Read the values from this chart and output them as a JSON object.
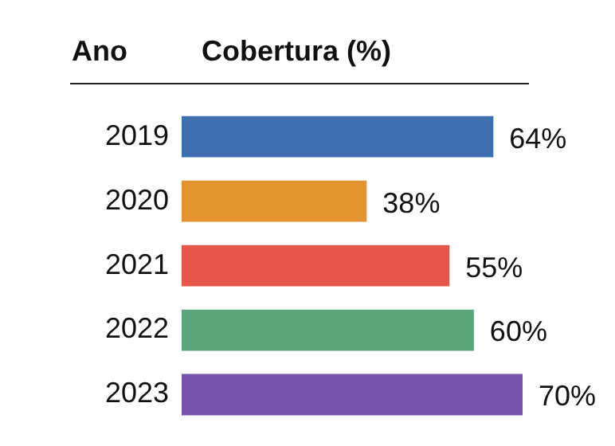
{
  "chart_data": {
    "type": "bar",
    "orientation": "horizontal",
    "title": "Cobertura (%)",
    "ylabel": "Ano",
    "categories": [
      "2019",
      "2020",
      "2021",
      "2022",
      "2023"
    ],
    "values": [
      64,
      38,
      55,
      60,
      70
    ],
    "colors": [
      "#3f6fb0",
      "#e3932f",
      "#e6564a",
      "#5ba57b",
      "#7453a8"
    ],
    "value_labels": [
      "64%",
      "38%",
      "55%",
      "60%",
      "70%"
    ],
    "tick_labels": "y",
    "legend": false
  }
}
